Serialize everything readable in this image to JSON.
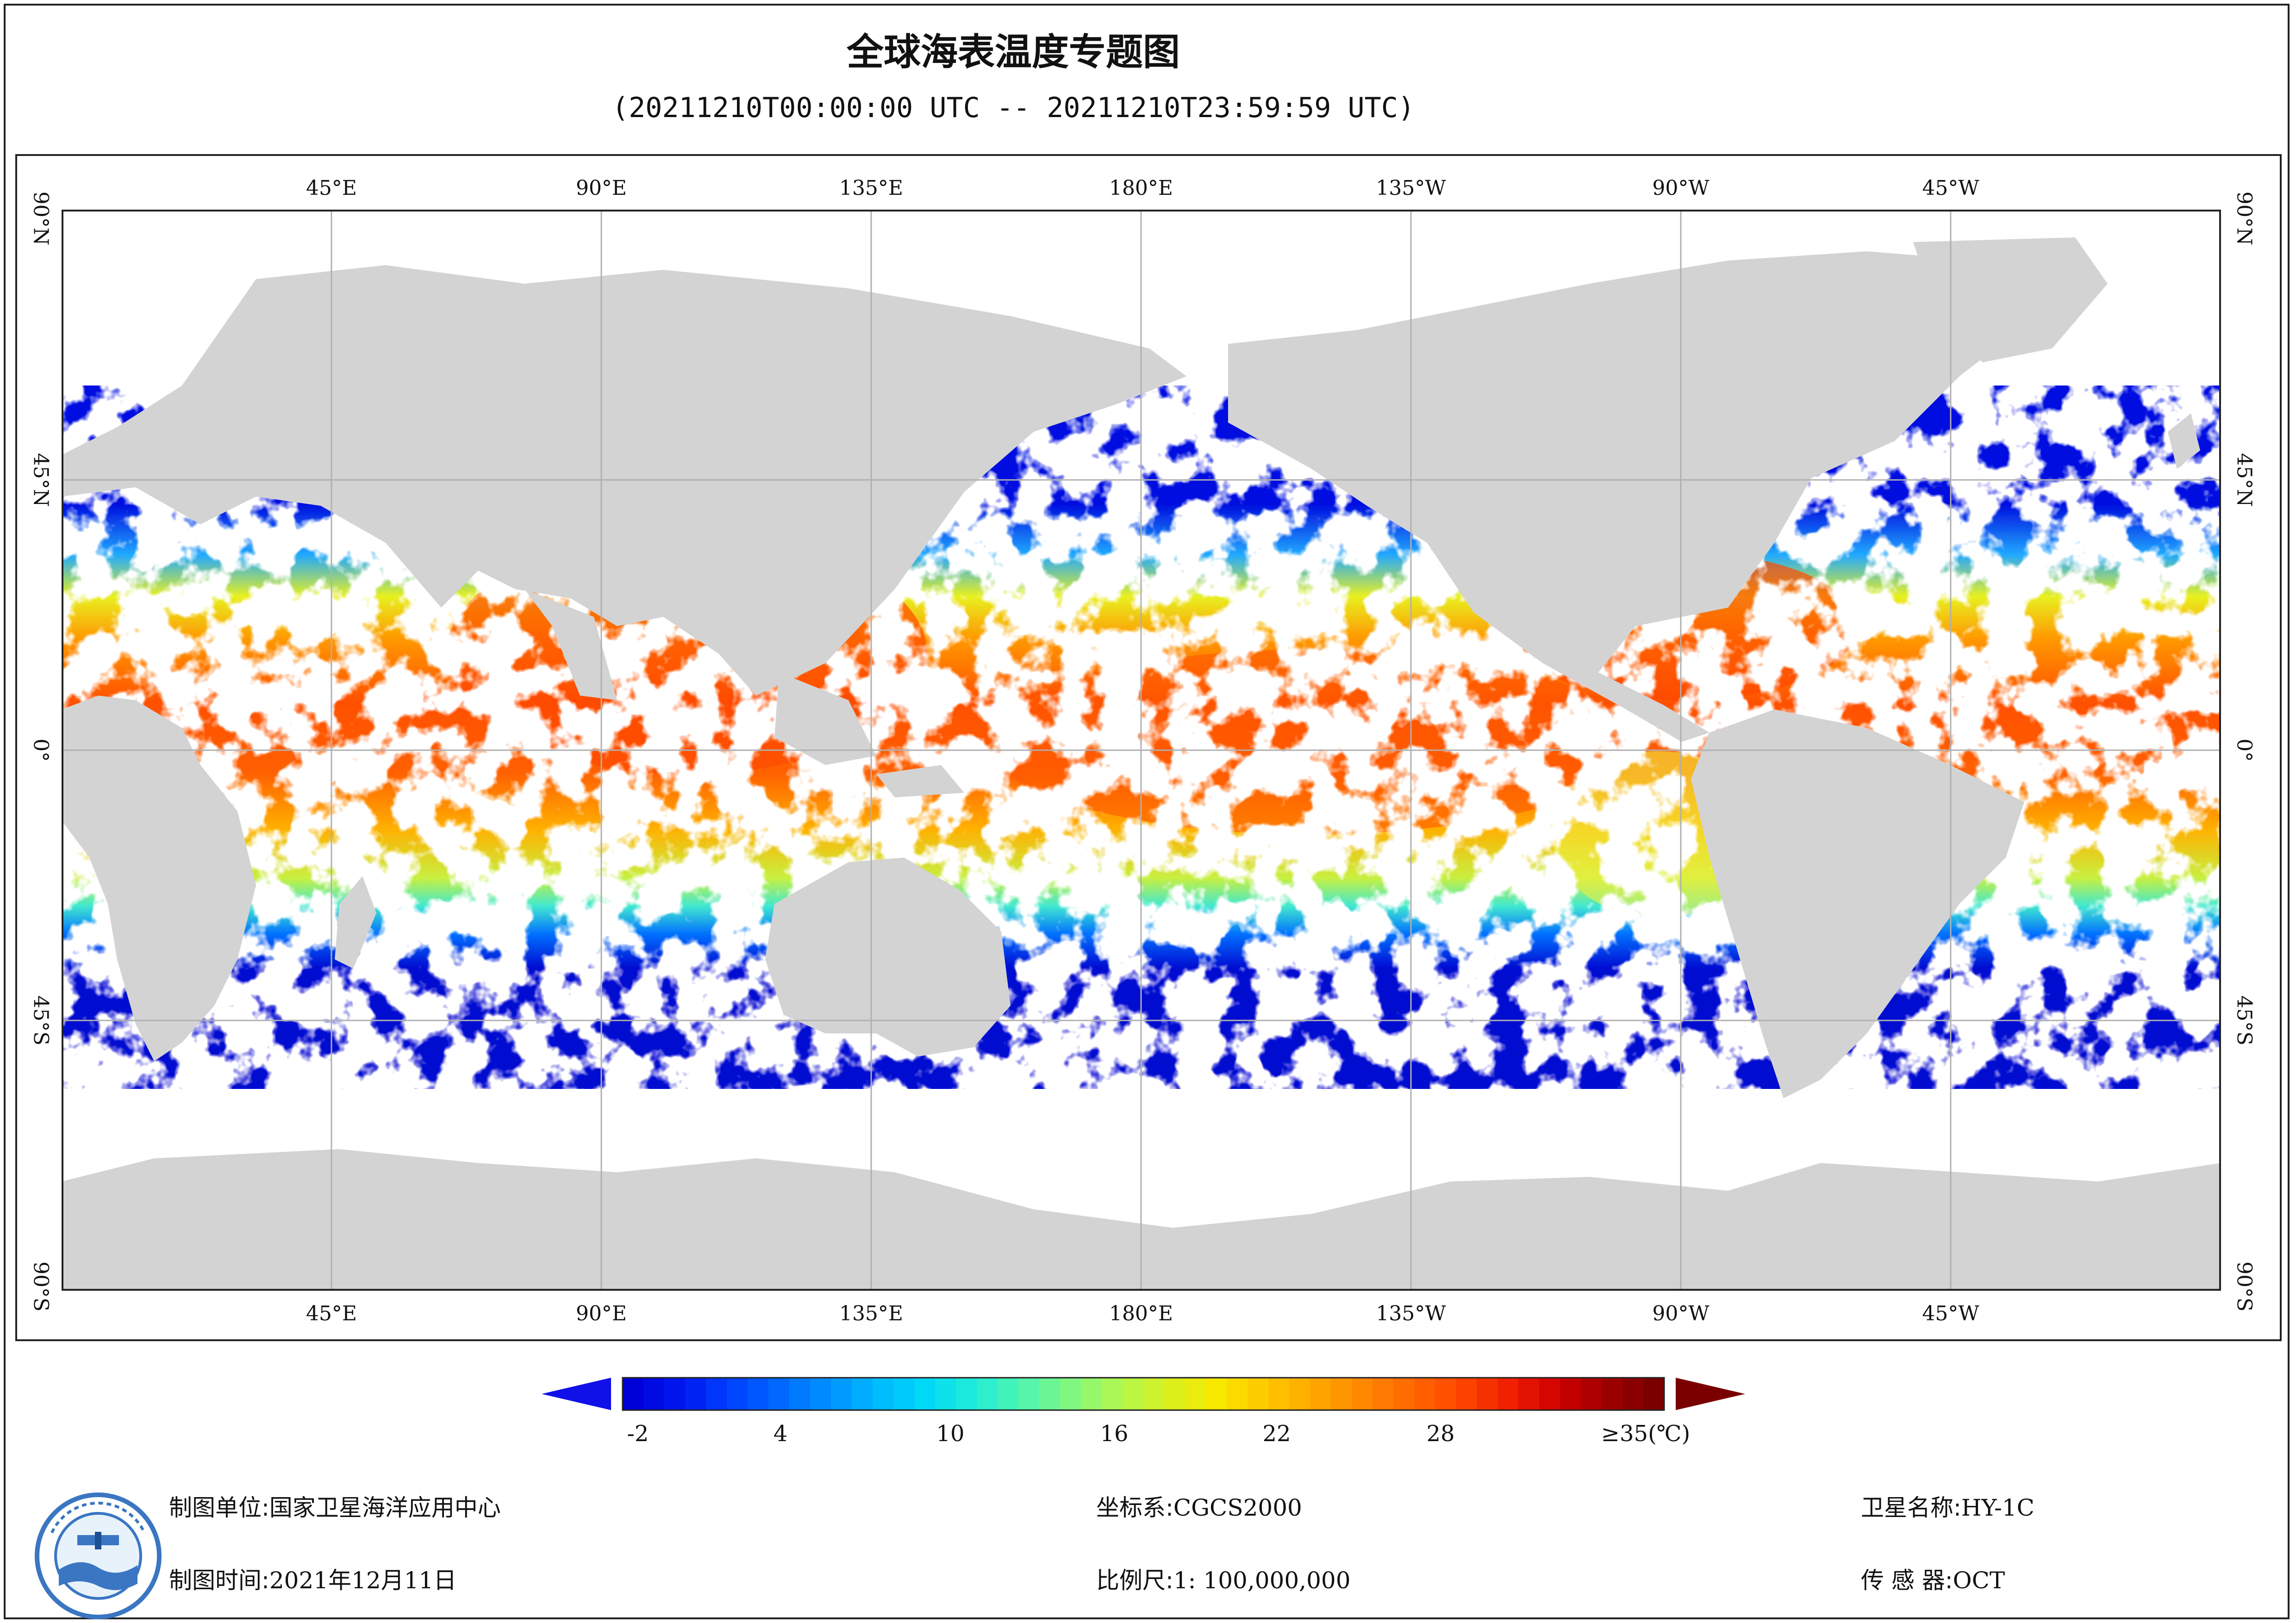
{
  "title": "全球海表温度专题图",
  "subtitle": "(20211210T00:00:00 UTC -- 20211210T23:59:59 UTC)",
  "map": {
    "projection": "equirectangular",
    "center_longitude": "0°",
    "land_color": "#d3d3d3",
    "no_data_color": "#ffffff",
    "graticule_color": "#b0b0b0",
    "top_ticks": [
      "45°E",
      "90°E",
      "135°E",
      "180°E",
      "135°W",
      "90°W",
      "45°W"
    ],
    "bottom_ticks": [
      "45°E",
      "90°E",
      "135°E",
      "180°E",
      "135°W",
      "90°W",
      "45°W"
    ],
    "left_ticks": [
      "90°N",
      "45°N",
      "0°",
      "45°S",
      "90°S"
    ],
    "right_ticks": [
      "90°N",
      "45°N",
      "0°",
      "45°S",
      "90°S"
    ]
  },
  "colorbar": {
    "labels": [
      "-2",
      "4",
      "10",
      "16",
      "22",
      "28",
      "≥35(℃)"
    ],
    "min_value": -2,
    "max_value": 35,
    "under_color": "#1010e8",
    "over_color": "#7a0000",
    "colors": [
      "#0000d8",
      "#0018f0",
      "#0040ff",
      "#0068ff",
      "#0090ff",
      "#00b8ff",
      "#00d8f8",
      "#20ecd8",
      "#50f4b0",
      "#80f880",
      "#b0f850",
      "#d8f020",
      "#f8e800",
      "#ffc800",
      "#ffa800",
      "#ff8800",
      "#ff6800",
      "#ff4800",
      "#f02000",
      "#d00000",
      "#a00000",
      "#7a0000"
    ]
  },
  "footer": {
    "unit_label": "制图单位:",
    "unit_value": "国家卫星海洋应用中心",
    "time_label": "制图时间:",
    "time_value": "2021年12月11日",
    "crs_label": "坐标系:",
    "crs_value": "CGCS2000",
    "scale_label": "比例尺:",
    "scale_value": "1: 100,000,000",
    "satellite_label": "卫星名称:",
    "satellite_value": "HY-1C",
    "sensor_label": "传 感 器:",
    "sensor_value": "OCT"
  }
}
